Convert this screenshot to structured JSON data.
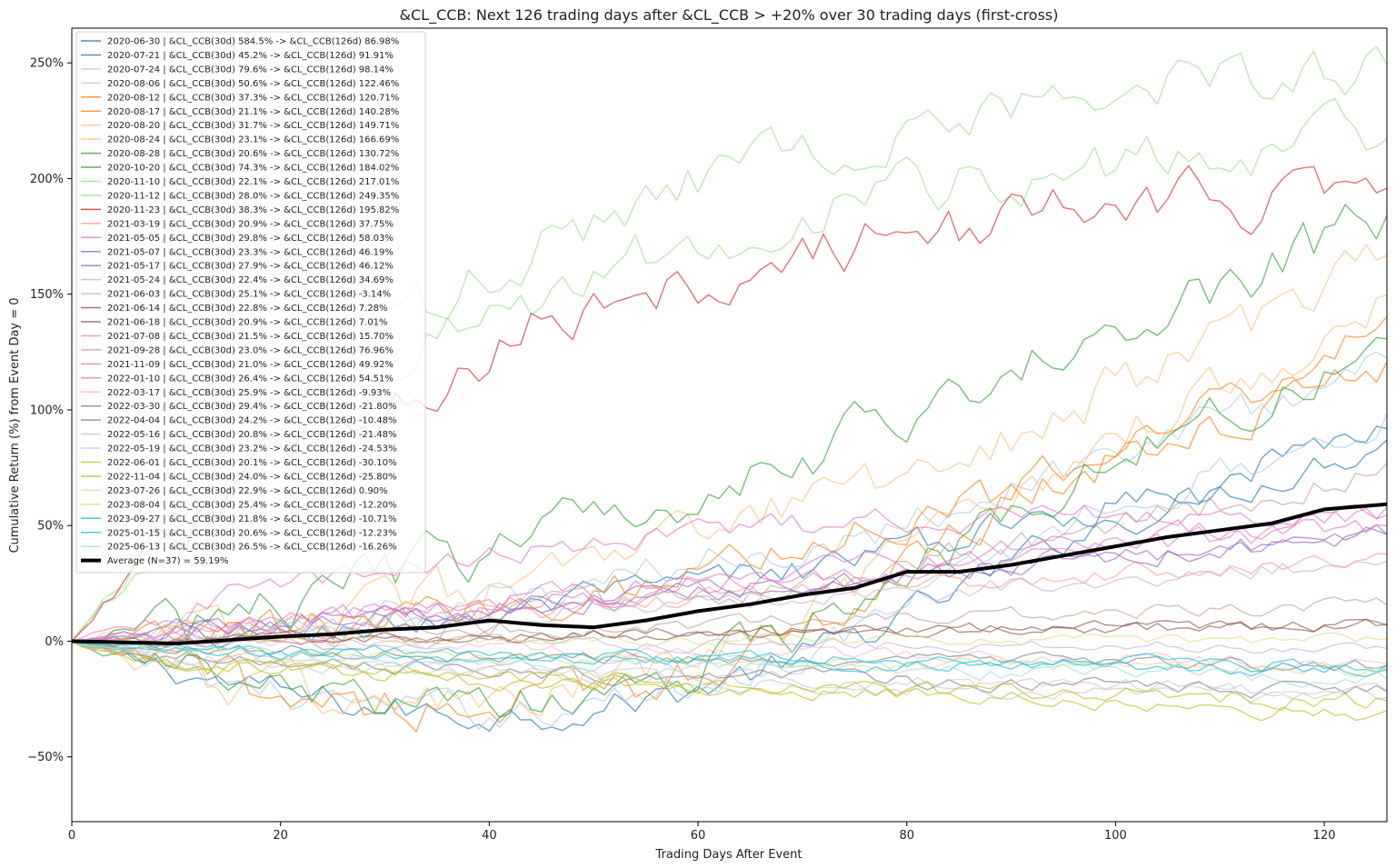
{
  "chart_data": {
    "type": "line",
    "title": "&CL_CCB: Next 126 trading days after &CL_CCB > +20% over 30 trading days (first-cross)",
    "xlabel": "Trading Days After Event",
    "ylabel": "Cumulative Return (%) from Event Day = 0",
    "xlim": [
      0,
      126
    ],
    "ylim": [
      -78,
      265
    ],
    "x_ticks": [
      0,
      20,
      40,
      60,
      80,
      100,
      120
    ],
    "x_tick_labels": [
      "0",
      "20",
      "40",
      "60",
      "80",
      "100",
      "120"
    ],
    "y_ticks": [
      -50,
      0,
      50,
      100,
      150,
      200,
      250
    ],
    "y_tick_labels": [
      "−50%",
      "0%",
      "50%",
      "100%",
      "150%",
      "200%",
      "250%"
    ],
    "legend_position": "upper-left",
    "series": [
      {
        "name": "2020-06-30 | &CL_CCB(30d) 584.5% -> &CL_CCB(126d) 86.98%",
        "color": "#1f77b4",
        "final": 86.98,
        "profile": "v"
      },
      {
        "name": "2020-07-21 | &CL_CCB(30d) 45.2% -> &CL_CCB(126d) 91.91%",
        "color": "#1f77b4",
        "final": 91.91,
        "profile": "s"
      },
      {
        "name": "2020-07-24 | &CL_CCB(30d) 79.6% -> &CL_CCB(126d) 98.14%",
        "color": "#aec7e8",
        "final": 98.14,
        "profile": "v"
      },
      {
        "name": "2020-08-06 | &CL_CCB(30d) 50.6% -> &CL_CCB(126d) 122.46%",
        "color": "#aec7e8",
        "final": 122.46,
        "profile": "s"
      },
      {
        "name": "2020-08-12 | &CL_CCB(30d) 37.3% -> &CL_CCB(126d) 120.71%",
        "color": "#ff7f0e",
        "final": 120.71,
        "profile": "s"
      },
      {
        "name": "2020-08-17 | &CL_CCB(30d) 21.1% -> &CL_CCB(126d) 140.28%",
        "color": "#ff7f0e",
        "final": 140.28,
        "profile": "v"
      },
      {
        "name": "2020-08-20 | &CL_CCB(30d) 31.7% -> &CL_CCB(126d) 149.71%",
        "color": "#ffbb78",
        "final": 149.71,
        "profile": "v"
      },
      {
        "name": "2020-08-24 | &CL_CCB(30d) 23.1% -> &CL_CCB(126d) 166.69%",
        "color": "#ffbb78",
        "final": 166.69,
        "profile": "s"
      },
      {
        "name": "2020-08-28 | &CL_CCB(30d) 20.6% -> &CL_CCB(126d) 130.72%",
        "color": "#2ca02c",
        "final": 130.72,
        "profile": "v"
      },
      {
        "name": "2020-10-20 | &CL_CCB(30d) 74.3% -> &CL_CCB(126d) 184.02%",
        "color": "#2ca02c",
        "final": 184.02,
        "profile": "m"
      },
      {
        "name": "2020-11-10 | &CL_CCB(30d) 22.1% -> &CL_CCB(126d) 217.01%",
        "color": "#98df8a",
        "final": 217.01,
        "profile": "e"
      },
      {
        "name": "2020-11-12 | &CL_CCB(30d) 28.0% -> &CL_CCB(126d) 249.35%",
        "color": "#98df8a",
        "final": 249.35,
        "profile": "e"
      },
      {
        "name": "2020-11-23 | &CL_CCB(30d) 38.3% -> &CL_CCB(126d) 195.82%",
        "color": "#d62728",
        "final": 195.82,
        "profile": "e"
      },
      {
        "name": "2021-03-19 | &CL_CCB(30d) 20.9% -> &CL_CCB(126d) 37.75%",
        "color": "#ff9896",
        "final": 37.75,
        "profile": "l"
      },
      {
        "name": "2021-05-05 | &CL_CCB(30d) 29.8% -> &CL_CCB(126d) 58.03%",
        "color": "#e377c2",
        "final": 58.03,
        "profile": "e"
      },
      {
        "name": "2021-05-07 | &CL_CCB(30d) 23.3% -> &CL_CCB(126d) 46.19%",
        "color": "#9467bd",
        "final": 46.19,
        "profile": "l"
      },
      {
        "name": "2021-05-17 | &CL_CCB(30d) 27.9% -> &CL_CCB(126d) 46.12%",
        "color": "#9467bd",
        "final": 46.12,
        "profile": "l"
      },
      {
        "name": "2021-05-24 | &CL_CCB(30d) 22.4% -> &CL_CCB(126d) 34.69%",
        "color": "#c5b0d5",
        "final": 34.69,
        "profile": "l"
      },
      {
        "name": "2021-06-03 | &CL_CCB(30d) 25.1% -> &CL_CCB(126d) -3.14%",
        "color": "#c5b0d5",
        "final": -3.14,
        "profile": "l"
      },
      {
        "name": "2021-06-14 | &CL_CCB(30d) 22.8% -> &CL_CCB(126d) 7.28%",
        "color": "#8c564b",
        "final": 7.28,
        "profile": "l"
      },
      {
        "name": "2021-06-18 | &CL_CCB(30d) 20.9% -> &CL_CCB(126d) 7.01%",
        "color": "#8c564b",
        "final": 7.01,
        "profile": "l"
      },
      {
        "name": "2021-07-08 | &CL_CCB(30d) 21.5% -> &CL_CCB(126d) 15.70%",
        "color": "#c49c94",
        "final": 15.7,
        "profile": "l"
      },
      {
        "name": "2021-09-28 | &CL_CCB(30d) 23.0% -> &CL_CCB(126d) 76.96%",
        "color": "#c49c94",
        "final": 76.96,
        "profile": "s"
      },
      {
        "name": "2021-11-09 | &CL_CCB(30d) 21.0% -> &CL_CCB(126d) 49.92%",
        "color": "#e377c2",
        "final": 49.92,
        "profile": "l"
      },
      {
        "name": "2022-01-10 | &CL_CCB(30d) 26.4% -> &CL_CCB(126d) 54.51%",
        "color": "#e377c2",
        "final": 54.51,
        "profile": "l"
      },
      {
        "name": "2022-03-17 | &CL_CCB(30d) 25.9% -> &CL_CCB(126d) -9.93%",
        "color": "#f7b6d2",
        "final": -9.93,
        "profile": "l"
      },
      {
        "name": "2022-03-30 | &CL_CCB(30d) 29.4% -> &CL_CCB(126d) -21.80%",
        "color": "#7f7f7f",
        "final": -21.8,
        "profile": "n"
      },
      {
        "name": "2022-04-04 | &CL_CCB(30d) 24.2% -> &CL_CCB(126d) -10.48%",
        "color": "#7f7f7f",
        "final": -10.48,
        "profile": "n"
      },
      {
        "name": "2022-05-16 | &CL_CCB(30d) 20.8% -> &CL_CCB(126d) -21.48%",
        "color": "#c7c7c7",
        "final": -21.48,
        "profile": "n"
      },
      {
        "name": "2022-05-19 | &CL_CCB(30d) 23.2% -> &CL_CCB(126d) -24.53%",
        "color": "#c7c7c7",
        "final": -24.53,
        "profile": "n"
      },
      {
        "name": "2022-06-01 | &CL_CCB(30d) 20.1% -> &CL_CCB(126d) -30.10%",
        "color": "#bcbd22",
        "final": -30.1,
        "profile": "n"
      },
      {
        "name": "2022-11-04 | &CL_CCB(30d) 24.0% -> &CL_CCB(126d) -25.80%",
        "color": "#bcbd22",
        "final": -25.8,
        "profile": "n"
      },
      {
        "name": "2023-07-26 | &CL_CCB(30d) 22.9% -> &CL_CCB(126d) 0.90%",
        "color": "#dbdb8d",
        "final": 0.9,
        "profile": "l"
      },
      {
        "name": "2023-08-04 | &CL_CCB(30d) 25.4% -> &CL_CCB(126d) -12.20%",
        "color": "#dbdb8d",
        "final": -12.2,
        "profile": "n"
      },
      {
        "name": "2023-09-27 | &CL_CCB(30d) 21.8% -> &CL_CCB(126d) -10.71%",
        "color": "#17becf",
        "final": -10.71,
        "profile": "n"
      },
      {
        "name": "2025-01-15 | &CL_CCB(30d) 20.6% -> &CL_CCB(126d) -12.23%",
        "color": "#17becf",
        "final": -12.23,
        "profile": "n"
      },
      {
        "name": "2025-06-13 | &CL_CCB(30d) 26.5% -> &CL_CCB(126d) -16.26%",
        "color": "#9edae5",
        "final": -16.26,
        "profile": "n"
      }
    ],
    "average": {
      "name": "Average (N=37) = 59.19%",
      "color": "#000000",
      "final": 59.19,
      "x": [
        0,
        5,
        10,
        15,
        20,
        25,
        30,
        35,
        40,
        45,
        50,
        55,
        60,
        65,
        70,
        75,
        80,
        85,
        90,
        95,
        100,
        105,
        110,
        115,
        120,
        126
      ],
      "values": [
        0,
        -0.5,
        -1,
        0.5,
        2,
        3,
        5,
        6,
        9,
        7,
        6,
        9,
        13,
        16,
        20,
        23,
        30,
        30,
        33,
        37,
        41,
        45,
        48,
        51,
        57,
        59.19
      ]
    }
  }
}
